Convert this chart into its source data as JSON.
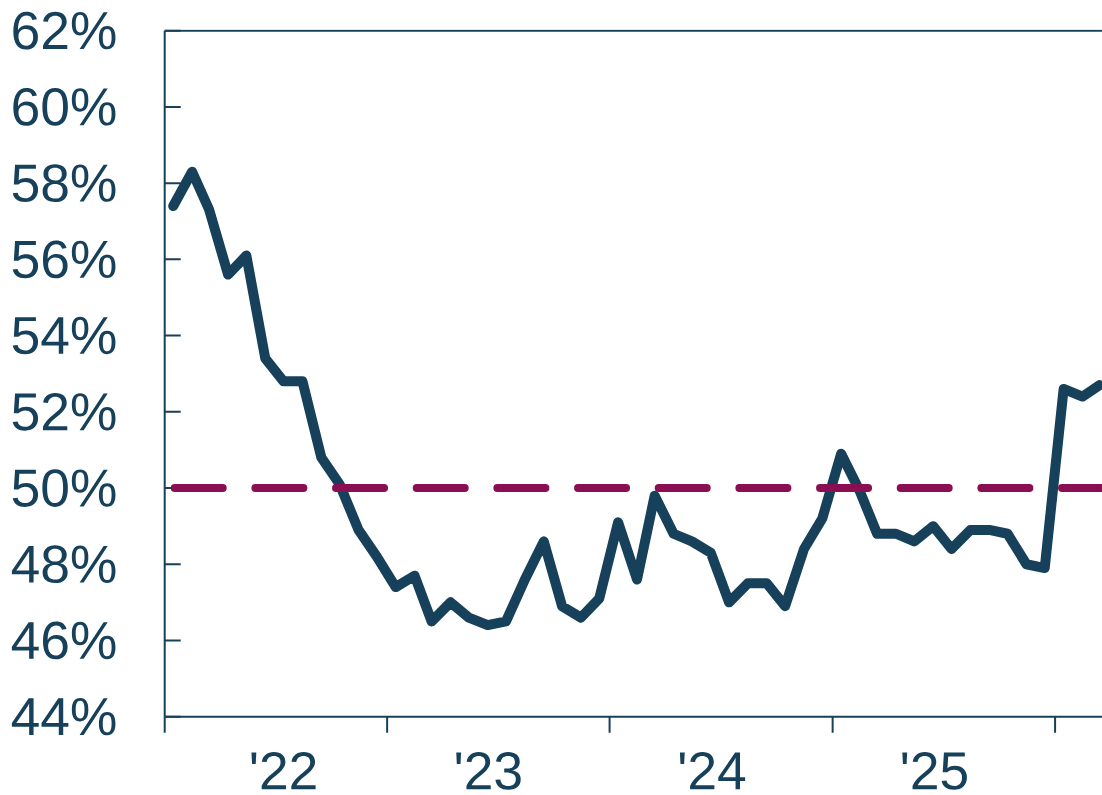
{
  "chart_data": {
    "type": "line",
    "x": [
      "2022-01-15",
      "2022-02-15",
      "2022-03-15",
      "2022-04-15",
      "2022-05-15",
      "2022-06-15",
      "2022-07-15",
      "2022-08-15",
      "2022-09-15",
      "2022-10-15",
      "2022-11-15",
      "2022-12-15",
      "2023-01-15",
      "2023-02-15",
      "2023-03-15",
      "2023-04-15",
      "2023-05-15",
      "2023-06-15",
      "2023-07-15",
      "2023-08-15",
      "2023-09-15",
      "2023-10-15",
      "2023-11-15",
      "2023-12-15",
      "2024-01-15",
      "2024-02-15",
      "2024-03-15",
      "2024-04-15",
      "2024-05-15",
      "2024-06-15",
      "2024-07-15",
      "2024-08-15",
      "2024-09-15",
      "2024-10-15",
      "2024-11-15",
      "2024-12-15",
      "2025-01-15",
      "2025-02-15",
      "2025-03-15",
      "2025-04-15",
      "2025-05-15",
      "2025-06-15",
      "2025-07-15",
      "2025-08-15",
      "2025-09-15",
      "2025-10-15",
      "2025-11-15",
      "2025-12-15",
      "2026-01-15",
      "2026-02-15",
      "2026-03-15"
    ],
    "series": [
      {
        "color": "#17405a",
        "values": [
          57.4,
          58.3,
          57.3,
          55.6,
          56.1,
          53.4,
          52.8,
          52.8,
          50.8,
          50.1,
          48.9,
          48.2,
          47.4,
          47.7,
          46.5,
          47.0,
          46.6,
          46.4,
          46.5,
          47.6,
          48.6,
          46.9,
          46.6,
          47.1,
          49.1,
          47.6,
          49.8,
          48.8,
          48.6,
          48.3,
          47.0,
          47.5,
          47.5,
          46.9,
          48.4,
          49.2,
          50.9,
          49.9,
          48.8,
          48.8,
          48.6,
          49.0,
          48.4,
          48.9,
          48.9,
          48.8,
          48.0,
          47.9,
          52.6,
          52.4,
          52.7
        ]
      }
    ],
    "xlim": [
      "2022-01-01",
      "2026-03-19"
    ],
    "xticks": [
      {
        "value": "2022-01-01",
        "label": null
      },
      {
        "value": "2022-07-15",
        "label": "'22"
      },
      {
        "value": "2023-01-01",
        "label": null
      },
      {
        "value": "2023-06-16",
        "label": "'23"
      },
      {
        "value": "2024-01-01",
        "label": null
      },
      {
        "value": "2024-06-17",
        "label": "'24"
      },
      {
        "value": "2025-01-01",
        "label": null
      },
      {
        "value": "2025-06-17",
        "label": "'25"
      },
      {
        "value": "2026-01-01",
        "label": null
      }
    ],
    "ylim": [
      44,
      62
    ],
    "yticks": [
      {
        "value": 44,
        "label": "44%"
      },
      {
        "value": 46,
        "label": "46%"
      },
      {
        "value": 48,
        "label": "48%"
      },
      {
        "value": 50,
        "label": "50%"
      },
      {
        "value": 52,
        "label": "52%"
      },
      {
        "value": 54,
        "label": "54%"
      },
      {
        "value": 56,
        "label": "56%"
      },
      {
        "value": 58,
        "label": "58%"
      },
      {
        "value": 60,
        "label": "60%"
      },
      {
        "value": 62,
        "label": "62%"
      }
    ],
    "ref_lines": [
      {
        "axis": "y",
        "value": 50,
        "color": "#8a0f52",
        "line_style": "dashed"
      }
    ],
    "marker": "none"
  }
}
